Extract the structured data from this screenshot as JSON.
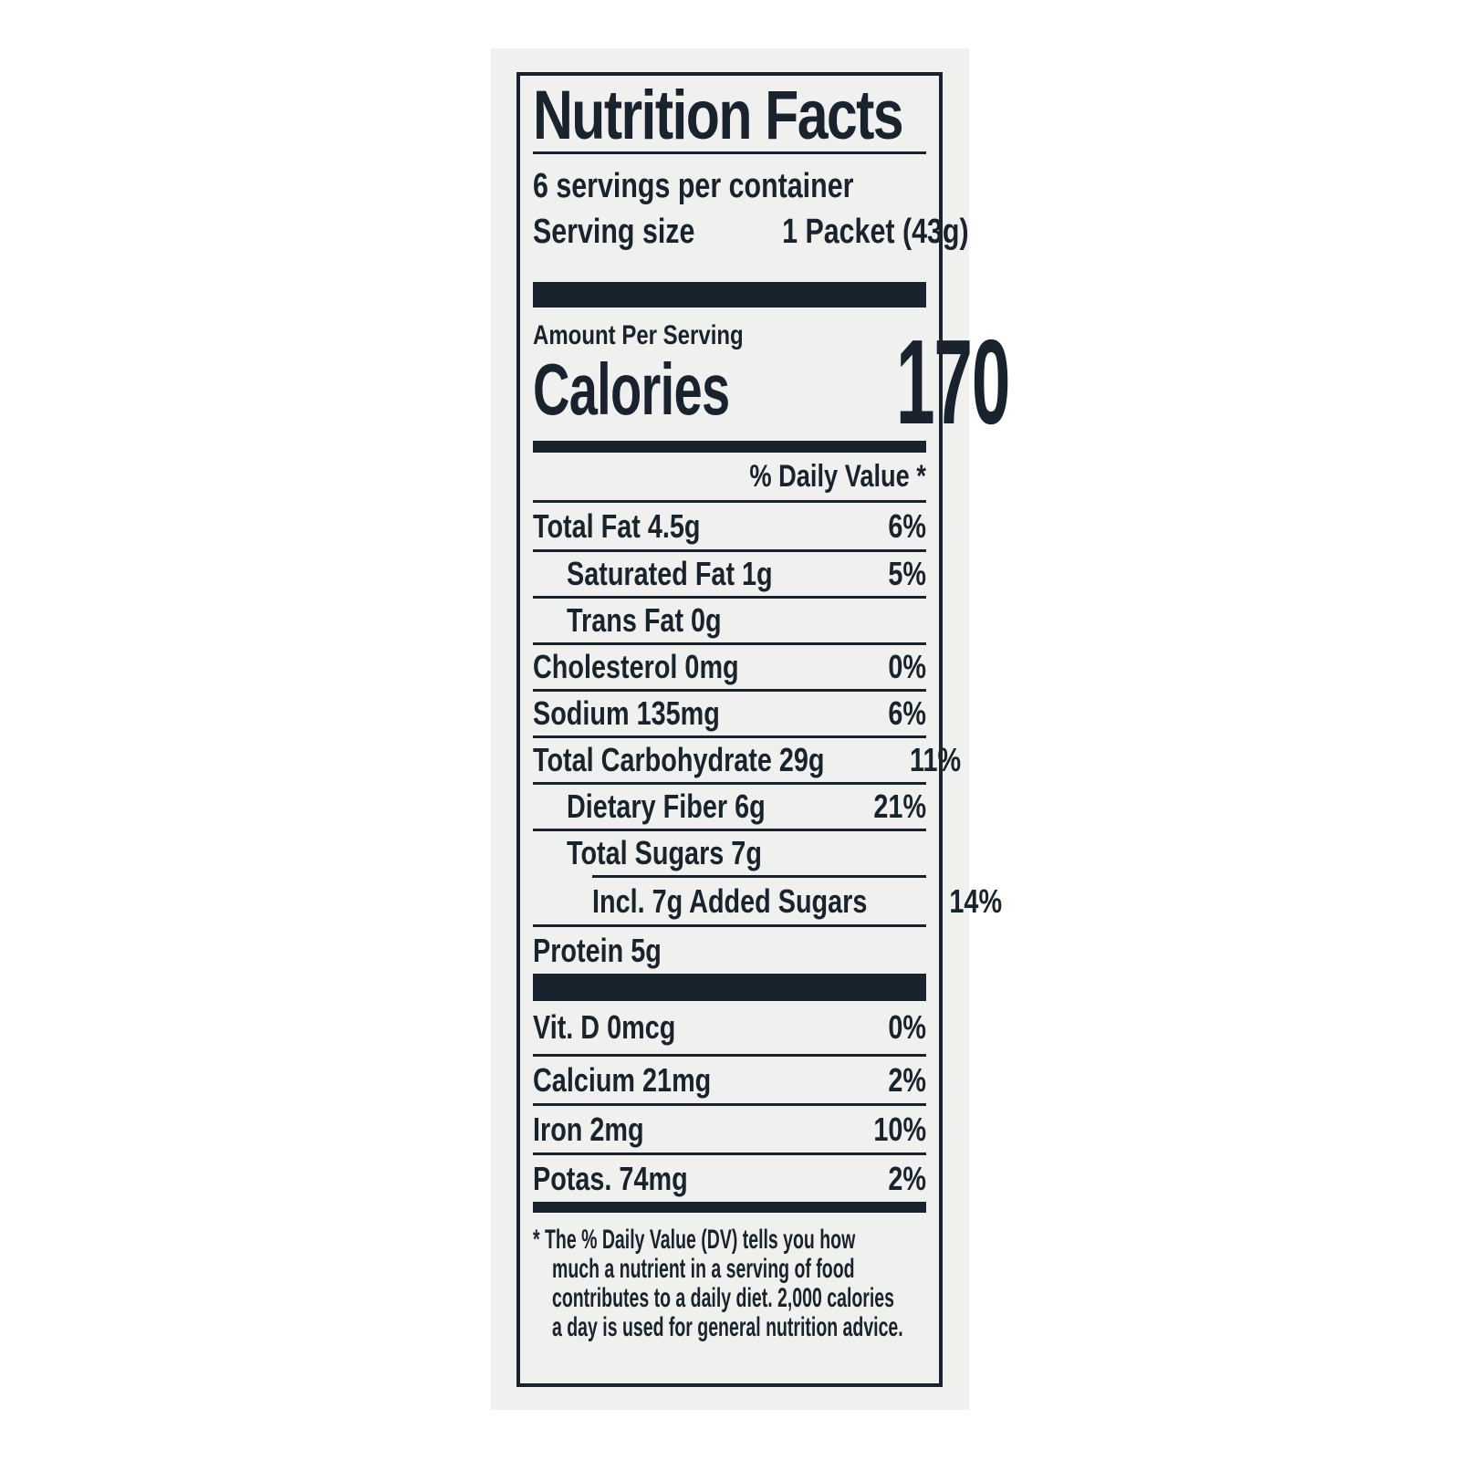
{
  "label": {
    "title": "Nutrition Facts",
    "servings_per_container": "6 servings per container",
    "serving_size_label": "Serving size",
    "serving_size_value": "1 Packet (43g)",
    "amount_per_serving": "Amount Per Serving",
    "calories_label": "Calories",
    "calories_value": "170",
    "daily_value_header": "% Daily Value *",
    "nutrients": [
      {
        "name": "Total Fat 4.5g",
        "dv": "6%"
      },
      {
        "name": "Saturated Fat 1g",
        "dv": "5%"
      },
      {
        "name": "Trans Fat 0g",
        "dv": ""
      },
      {
        "name": "Cholesterol 0mg",
        "dv": "0%"
      },
      {
        "name": "Sodium 135mg",
        "dv": "6%"
      },
      {
        "name": "Total Carbohydrate 29g",
        "dv": "11%"
      },
      {
        "name": "Dietary Fiber 6g",
        "dv": "21%"
      },
      {
        "name": "Total Sugars 7g",
        "dv": ""
      },
      {
        "name": "Incl. 7g Added Sugars",
        "dv": "14%"
      },
      {
        "name": "Protein 5g",
        "dv": ""
      }
    ],
    "micronutrients": [
      {
        "name": "Vit. D 0mcg",
        "dv": "0%"
      },
      {
        "name": "Calcium 21mg",
        "dv": "2%"
      },
      {
        "name": "Iron 2mg",
        "dv": "10%"
      },
      {
        "name": "Potas. 74mg",
        "dv": "2%"
      }
    ],
    "footnote_lines": [
      "* The % Daily Value (DV) tells you how",
      "much a nutrient in a serving of food",
      "contributes to a daily diet. 2,000 calories",
      "a day is used for general nutrition advice."
    ],
    "footnote_text": "* The % Daily Value (DV) tells you how much a nutrient in a serving of food contributes to a daily diet. 2,000 calories a day is used for general nutrition advice.",
    "colors": {
      "ink": "#19232d",
      "panel": "#f0f1ef",
      "page": "#ffffff"
    }
  }
}
